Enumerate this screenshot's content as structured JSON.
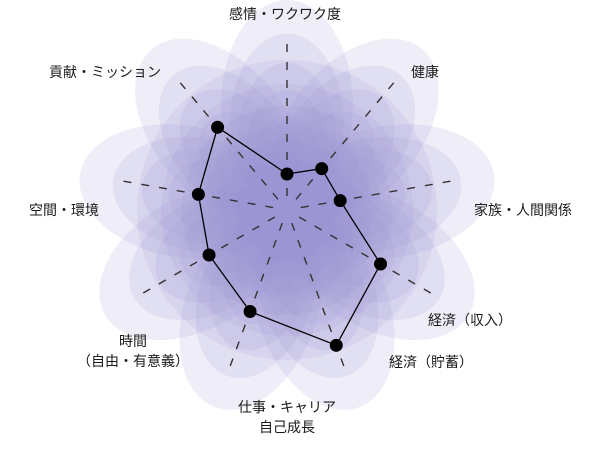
{
  "chart_data": {
    "type": "radar",
    "title": "",
    "max": 10,
    "axes": [
      {
        "label": "感情・ワクワク度",
        "value": 2
      },
      {
        "label": "健康",
        "value": 3
      },
      {
        "label": "家族・人間関係",
        "value": 3
      },
      {
        "label": "経済（収入）",
        "value": 6
      },
      {
        "label": "経済（貯蓄）",
        "value": 8
      },
      {
        "label": "仕事・キャリア\n自己成長",
        "value": 6
      },
      {
        "label": "時間\n（自由・有意義）",
        "value": 5
      },
      {
        "label": "空間・環境",
        "value": 5
      },
      {
        "label": "貢献・ミッション",
        "value": 6
      }
    ],
    "colors": {
      "petal": "#9a96d2",
      "point": "#000000",
      "line": "#000000",
      "tick": "#333333"
    }
  }
}
